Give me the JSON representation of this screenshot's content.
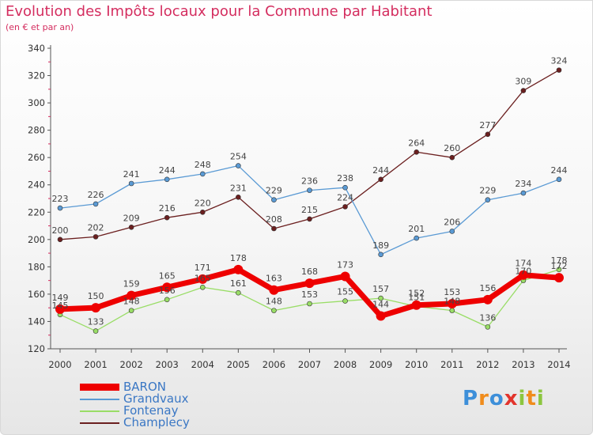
{
  "header": {
    "title": "Evolution des Impôts locaux pour la Commune par Habitant",
    "subtitle": "(en € et par an)"
  },
  "logo": {
    "text": "Proxiti"
  },
  "colors": {
    "BARON": "#ee0000",
    "Grandvaux": "#5a9ad4",
    "Fontenay": "#99dd66",
    "Champlecy": "#6b1f1f",
    "title": "#d42d5f",
    "legend_text": "#3a77c4"
  },
  "chart_data": {
    "type": "line",
    "title": "Evolution des Impôts locaux pour la Commune par Habitant",
    "subtitle": "(en € et par an)",
    "x": [
      2000,
      2001,
      2002,
      2003,
      2004,
      2005,
      2006,
      2007,
      2008,
      2009,
      2010,
      2011,
      2012,
      2013,
      2014
    ],
    "ylim": [
      120,
      340
    ],
    "yticks": [
      120,
      140,
      160,
      180,
      200,
      220,
      240,
      260,
      280,
      300,
      320,
      340
    ],
    "grid": false,
    "legend_position": "bottom-left",
    "series": [
      {
        "name": "BARON",
        "values": [
          149,
          150,
          159,
          165,
          171,
          178,
          163,
          168,
          173,
          144,
          152,
          153,
          156,
          174,
          172
        ]
      },
      {
        "name": "Grandvaux",
        "values": [
          223,
          226,
          241,
          244,
          248,
          254,
          229,
          236,
          238,
          189,
          201,
          206,
          229,
          234,
          244
        ]
      },
      {
        "name": "Fontenay",
        "values": [
          145,
          133,
          148,
          156,
          165,
          161,
          148,
          153,
          155,
          157,
          151,
          148,
          136,
          170,
          178
        ]
      },
      {
        "name": "Champlecy",
        "values": [
          200,
          202,
          209,
          216,
          220,
          231,
          208,
          215,
          224,
          244,
          264,
          260,
          277,
          309,
          324
        ]
      }
    ]
  }
}
